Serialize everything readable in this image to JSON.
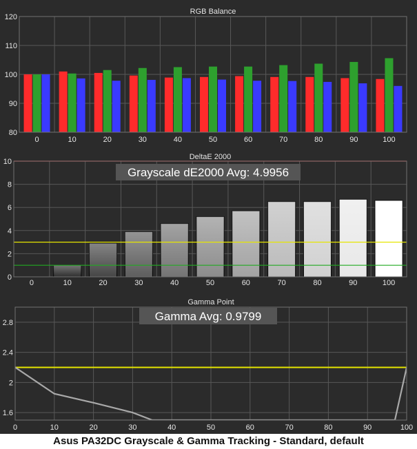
{
  "caption": "Asus PA32DC Grayscale & Gamma Tracking - Standard, default",
  "colors": {
    "panel_bg": "#2b2b2b",
    "grid": "#585858",
    "red": "#ff2b2b",
    "green": "#2ea02e",
    "blue": "#3a3aff",
    "yellow_line": "#e6e600",
    "green_line": "#22aa22",
    "red_line": "#ff3030",
    "gamma_line": "#a9a9a9"
  },
  "chart_data": [
    {
      "id": "rgb",
      "type": "bar",
      "title": "RGB Balance",
      "categories": [
        "0",
        "10",
        "20",
        "30",
        "40",
        "50",
        "60",
        "70",
        "80",
        "90",
        "100"
      ],
      "series": [
        {
          "color": "red",
          "values": [
            100.0,
            101.0,
            100.5,
            99.6,
            98.9,
            99.1,
            99.4,
            99.1,
            99.1,
            98.7,
            98.4
          ]
        },
        {
          "color": "green",
          "values": [
            100.0,
            100.3,
            101.5,
            102.2,
            102.5,
            102.7,
            102.7,
            103.2,
            103.7,
            104.3,
            105.6
          ]
        },
        {
          "color": "blue",
          "values": [
            100.0,
            98.6,
            97.8,
            98.1,
            98.7,
            98.2,
            97.8,
            97.7,
            97.4,
            96.9,
            96.0
          ]
        }
      ],
      "ylim": [
        80,
        120
      ],
      "yticks": [
        80,
        90,
        100,
        110,
        120
      ],
      "grid": true
    },
    {
      "id": "de",
      "type": "bar",
      "title": "DeltaE 2000",
      "annotation": "Grayscale dE2000 Avg: 4.9956",
      "categories": [
        "0",
        "10",
        "20",
        "30",
        "40",
        "50",
        "60",
        "70",
        "80",
        "90",
        "100"
      ],
      "values": [
        0,
        1.0,
        2.9,
        3.9,
        4.6,
        5.2,
        5.7,
        6.5,
        6.5,
        6.7,
        6.6
      ],
      "ylim": [
        0,
        10
      ],
      "yticks": [
        0,
        2,
        4,
        6,
        8,
        10
      ],
      "reference_lines": [
        {
          "value": 10,
          "color": "red"
        },
        {
          "value": 3,
          "color": "yellow"
        },
        {
          "value": 1,
          "color": "green"
        }
      ],
      "grid": true
    },
    {
      "id": "gamma",
      "type": "line",
      "title": "Gamma Point",
      "annotation": "Gamma Avg: 0.9799",
      "x": [
        0,
        10,
        20,
        30,
        35,
        97,
        100
      ],
      "y": [
        2.2,
        1.85,
        1.73,
        1.6,
        1.5,
        1.5,
        2.2
      ],
      "xlim": [
        0,
        100
      ],
      "ylim": [
        1.5,
        3.0
      ],
      "xticks": [
        0,
        10,
        20,
        30,
        40,
        50,
        60,
        70,
        80,
        90,
        100
      ],
      "yticks": [
        1.6,
        2,
        2.4,
        2.8
      ],
      "reference_lines": [
        {
          "value": 2.2,
          "color": "yellow"
        }
      ],
      "grid": true
    }
  ]
}
